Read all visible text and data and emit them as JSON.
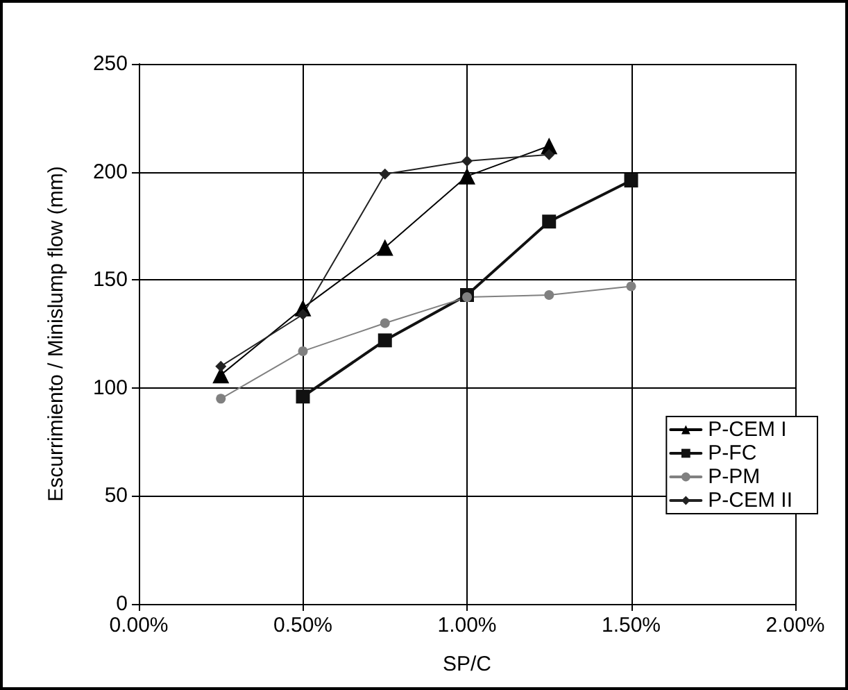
{
  "chart_data": {
    "type": "line",
    "xlabel": "SP/C",
    "ylabel": "Escurrimiento / Minislump flow (mm)",
    "xlim": [
      0,
      2
    ],
    "xticks": [
      {
        "value": 0,
        "label": "0.00%"
      },
      {
        "value": 0.5,
        "label": "0.50%"
      },
      {
        "value": 1,
        "label": "1.00%"
      },
      {
        "value": 1.5,
        "label": "1.50%"
      },
      {
        "value": 2,
        "label": "2.00%"
      }
    ],
    "ylim": [
      0,
      250
    ],
    "yticks": [
      0,
      50,
      100,
      150,
      200,
      250
    ],
    "grid": true,
    "legend": "bottom right",
    "series": [
      {
        "name": "P-CEM I",
        "color": "#000000",
        "marker": "triangle",
        "x": [
          0.25,
          0.5,
          0.75,
          1,
          1.25
        ],
        "values": [
          106,
          137,
          165,
          198,
          212
        ]
      },
      {
        "name": "P-FC",
        "color": "#111111",
        "marker": "square",
        "x": [
          0.5,
          0.75,
          1,
          1.25,
          1.5
        ],
        "values": [
          96,
          122,
          143,
          177,
          196
        ]
      },
      {
        "name": "P-PM",
        "color": "#808080",
        "marker": "circle",
        "x": [
          0.25,
          0.5,
          0.75,
          1,
          1.25,
          1.5
        ],
        "values": [
          95,
          117,
          130,
          142,
          143,
          147
        ]
      },
      {
        "name": "P-CEM II",
        "color": "#222222",
        "marker": "diamond",
        "x": [
          0.25,
          0.5,
          0.75,
          1,
          1.25
        ],
        "values": [
          110,
          134,
          199,
          205,
          208
        ]
      }
    ]
  }
}
